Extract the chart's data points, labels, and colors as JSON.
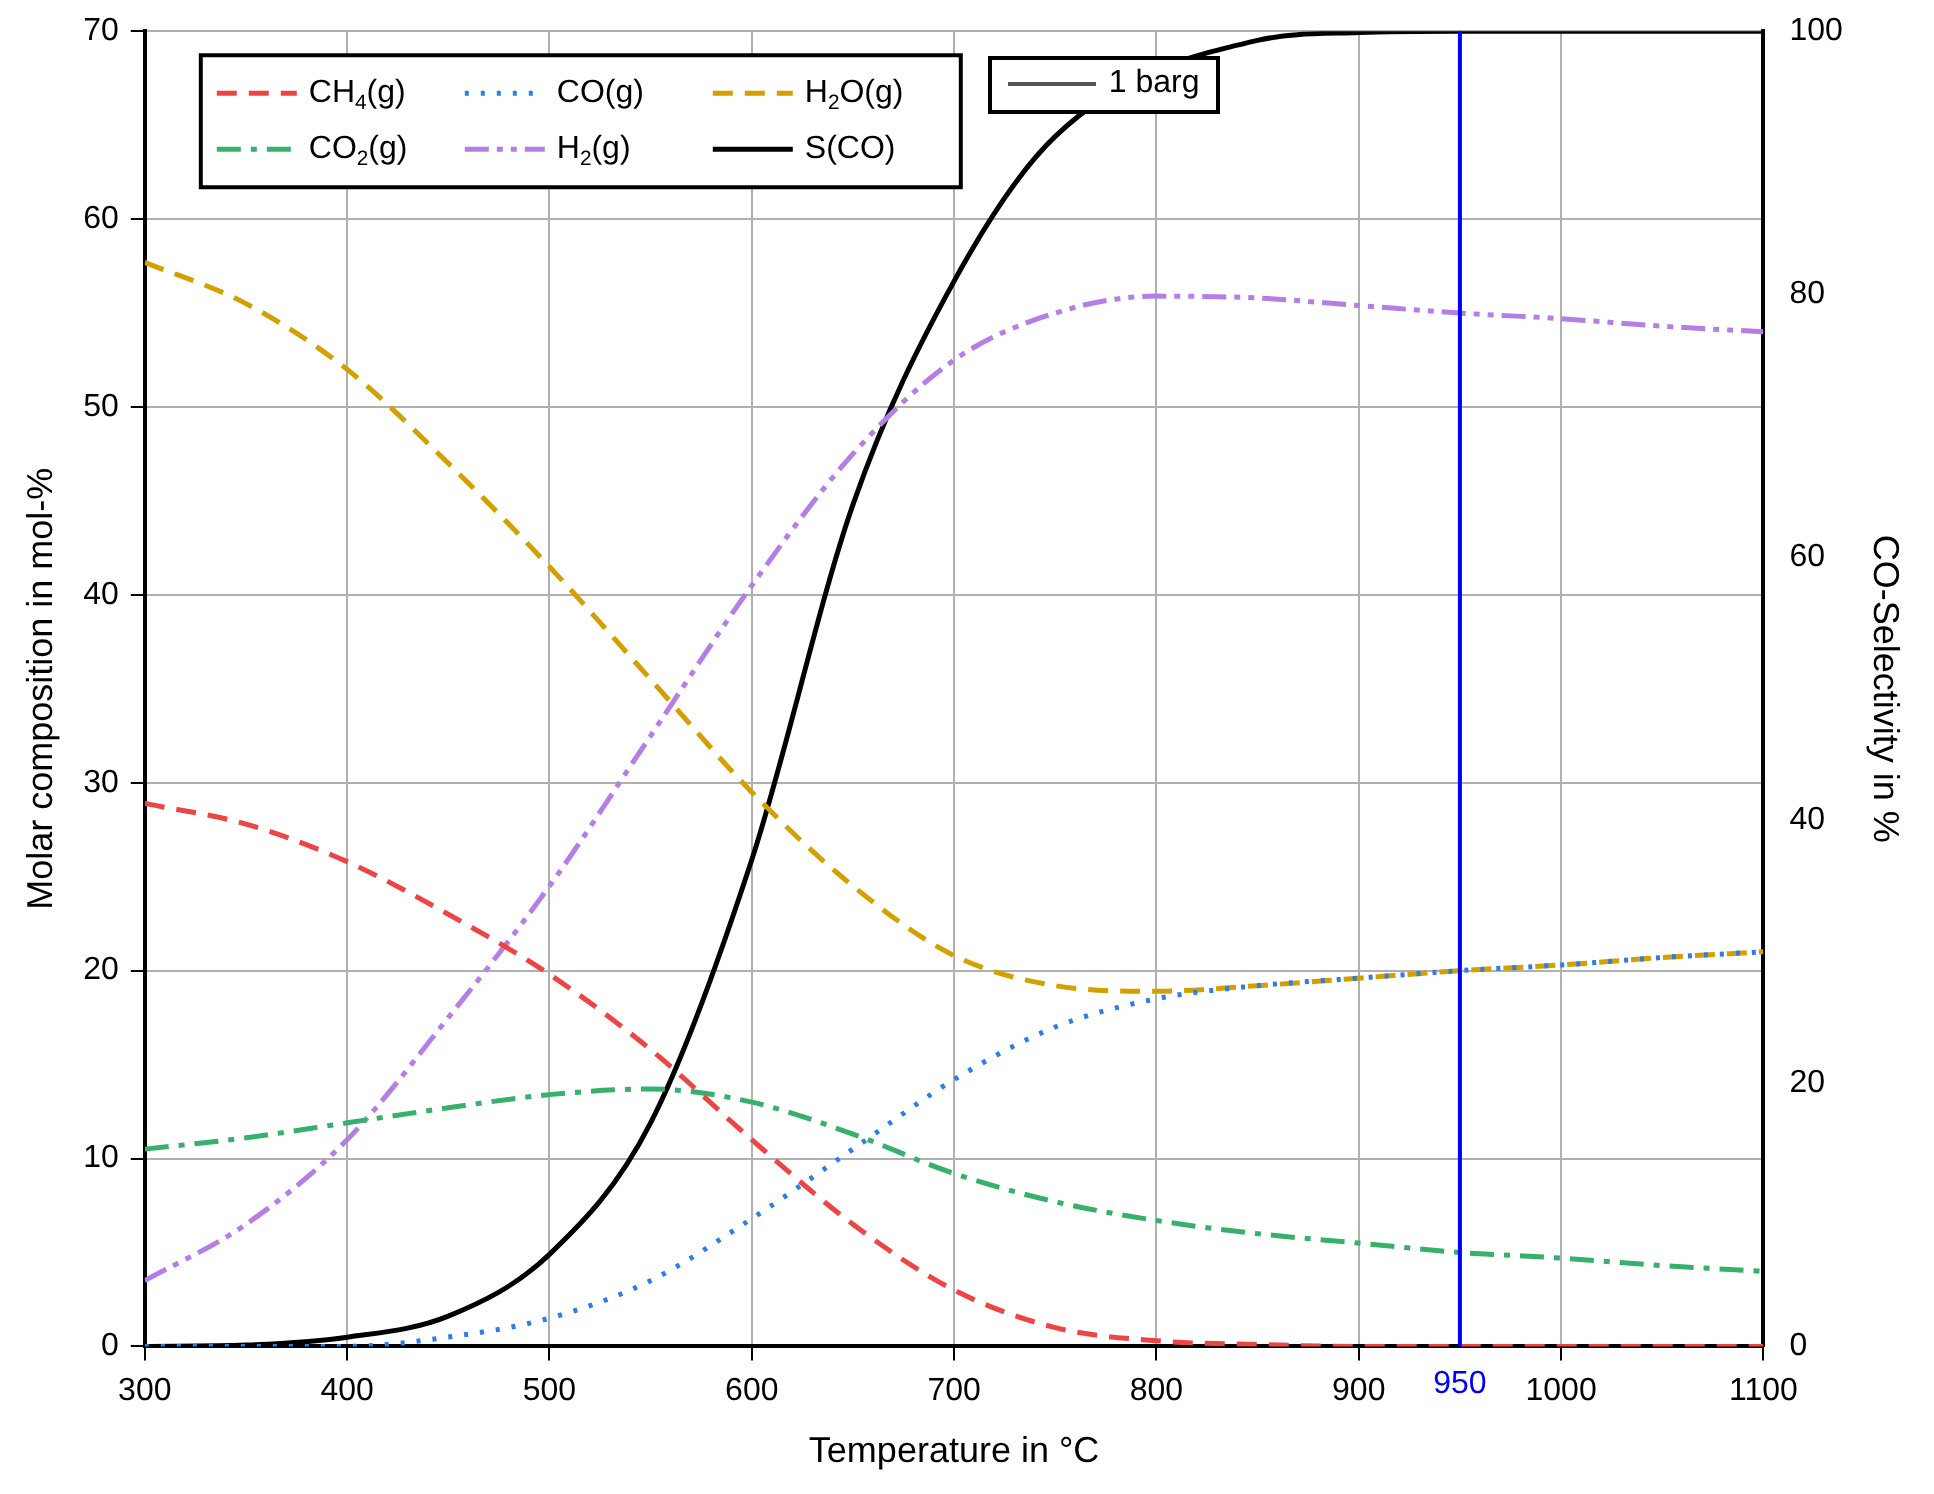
{
  "chart_data": {
    "type": "line",
    "xlabel": "Temperature in °C",
    "ylabel": "Molar composition in mol-%",
    "y2label": "CO-Selectivity in %",
    "x": [
      300,
      350,
      400,
      450,
      500,
      550,
      600,
      650,
      700,
      750,
      800,
      850,
      900,
      950,
      1000,
      1050,
      1100
    ],
    "xlim": [
      300,
      1100
    ],
    "xticks": [
      300,
      400,
      500,
      600,
      700,
      800,
      900,
      1000,
      1100
    ],
    "ylim": [
      0,
      70
    ],
    "yticks": [
      0,
      10,
      20,
      30,
      40,
      50,
      60,
      70
    ],
    "y2lim": [
      0,
      100
    ],
    "y2ticks": [
      0,
      20,
      40,
      60,
      80,
      100
    ],
    "grid": true,
    "legend": "top left",
    "legend_title": "1 barg",
    "marker": "none",
    "ref_lines": [
      {
        "axis": "x",
        "value": 950,
        "label": "950",
        "color": "#0000ff"
      }
    ],
    "series": [
      {
        "name": "CH$_{4}$(g)",
        "color": "#ef4444",
        "line_style": "dashed",
        "values": [
          28.9,
          27.8,
          25.8,
          23.0,
          19.8,
          15.8,
          11.0,
          6.5,
          3.0,
          1.0,
          0.3,
          0.1,
          0,
          0,
          0,
          0,
          0
        ]
      },
      {
        "name": "CO(g)",
        "color": "#2b7de9",
        "line_style": "dotted",
        "values": [
          0,
          0,
          0,
          0.5,
          1.5,
          3.5,
          6.8,
          10.5,
          14.2,
          17.0,
          18.5,
          19.2,
          19.6,
          20.0,
          20.3,
          20.7,
          21.0
        ]
      },
      {
        "name": "H$_{2}$O(g)",
        "color": "#d4a000",
        "line_style": "dashed",
        "values": [
          57.7,
          55.5,
          52.0,
          47.0,
          41.5,
          35.5,
          29.5,
          24.5,
          20.8,
          19.2,
          18.9,
          19.2,
          19.6,
          20.0,
          20.3,
          20.7,
          21.0
        ]
      },
      {
        "name": "CO$_{2}$(g)",
        "color": "#36b06a",
        "line_style": "dashdot",
        "values": [
          10.5,
          11.1,
          11.9,
          12.7,
          13.4,
          13.7,
          13.0,
          11.3,
          9.2,
          7.7,
          6.7,
          6.0,
          5.5,
          5.0,
          4.7,
          4.3,
          4.0
        ]
      },
      {
        "name": "H$_{2}$(g)",
        "color": "#b57ee6",
        "line_style": "dashdotdot",
        "values": [
          3.5,
          6.5,
          11.0,
          17.5,
          24.5,
          32.5,
          40.5,
          47.5,
          52.5,
          55.0,
          55.9,
          55.8,
          55.4,
          55.0,
          54.7,
          54.3,
          54.0
        ]
      },
      {
        "name": "S(CO)",
        "color": "#000000",
        "line_style": "solid",
        "axis": "y2",
        "values": [
          0,
          0.1,
          0.7,
          2.3,
          7,
          17,
          37,
          64,
          81,
          92,
          null,
          99.3,
          99.9,
          100,
          100,
          100,
          100
        ]
      }
    ]
  }
}
